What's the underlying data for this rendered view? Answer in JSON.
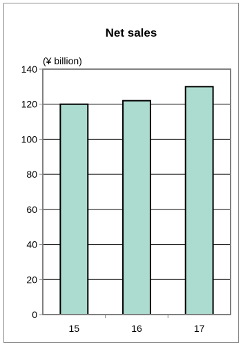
{
  "chart_data": {
    "type": "bar",
    "title": "Net sales",
    "unit_label": "(¥ billion)",
    "categories": [
      "15",
      "16",
      "17"
    ],
    "values": [
      120,
      122,
      130
    ],
    "ylim": [
      0,
      140
    ],
    "yticks": [
      "0",
      "20",
      "40",
      "60",
      "80",
      "100",
      "120",
      "140"
    ],
    "grid": true,
    "colors": {
      "bar_fill": "#acdccf",
      "bar_stroke": "#000000",
      "axis": "#808080",
      "grid": "#000000"
    }
  }
}
